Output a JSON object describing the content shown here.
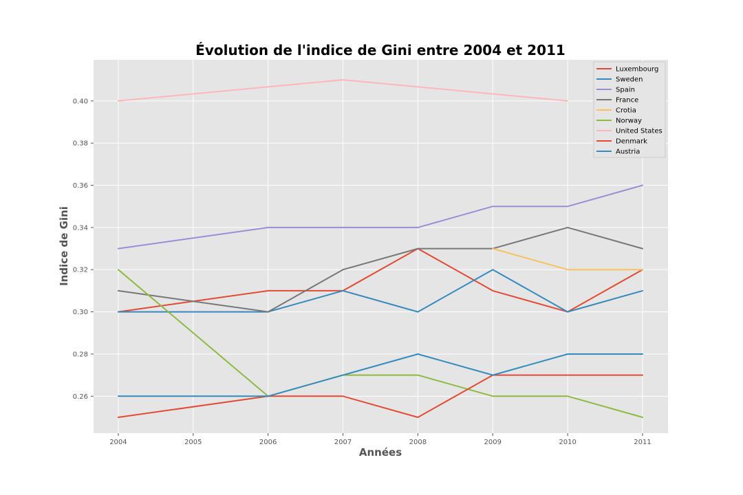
{
  "chart_data": {
    "type": "line",
    "title": "Évolution de l'indice de Gini entre 2004 et 2011",
    "xlabel": "Années",
    "ylabel": "Indice de Gini",
    "x": [
      2004,
      2005,
      2006,
      2007,
      2008,
      2009,
      2010,
      2011
    ],
    "xlim": [
      2003.67,
      2011.34
    ],
    "ylim": [
      0.2425,
      0.4195
    ],
    "x_ticks": [
      2004,
      2005,
      2006,
      2007,
      2008,
      2009,
      2010,
      2011
    ],
    "y_ticks": [
      0.26,
      0.28,
      0.3,
      0.32,
      0.34,
      0.36,
      0.38,
      0.4
    ],
    "y_tick_labels": [
      "0.26",
      "0.28",
      "0.30",
      "0.32",
      "0.34",
      "0.36",
      "0.38",
      "0.40"
    ],
    "grid": true,
    "legend_position": "top-right",
    "style": "ggplot",
    "series": [
      {
        "name": "Luxembourg",
        "color": "#E24A33",
        "points": [
          [
            2004,
            0.3
          ],
          [
            2006,
            0.31
          ],
          [
            2007,
            0.31
          ],
          [
            2008,
            0.33
          ],
          [
            2009,
            0.31
          ],
          [
            2010,
            0.3
          ],
          [
            2011,
            0.32
          ]
        ]
      },
      {
        "name": "Sweden",
        "color": "#348ABD",
        "points": [
          [
            2004,
            0.3
          ],
          [
            2006,
            0.3
          ],
          [
            2007,
            0.31
          ],
          [
            2008,
            0.3
          ],
          [
            2009,
            0.32
          ],
          [
            2010,
            0.3
          ],
          [
            2011,
            0.31
          ]
        ]
      },
      {
        "name": "Spain",
        "color": "#988ED5",
        "points": [
          [
            2004,
            0.33
          ],
          [
            2006,
            0.34
          ],
          [
            2007,
            0.34
          ],
          [
            2008,
            0.34
          ],
          [
            2009,
            0.35
          ],
          [
            2010,
            0.35
          ],
          [
            2011,
            0.36
          ]
        ]
      },
      {
        "name": "France",
        "color": "#777777",
        "points": [
          [
            2004,
            0.31
          ],
          [
            2006,
            0.3
          ],
          [
            2007,
            0.32
          ],
          [
            2008,
            0.33
          ],
          [
            2009,
            0.33
          ],
          [
            2010,
            0.34
          ],
          [
            2011,
            0.33
          ]
        ]
      },
      {
        "name": "Crotia",
        "color": "#FBC15E",
        "points": [
          [
            2009,
            0.33
          ],
          [
            2010,
            0.32
          ],
          [
            2011,
            0.32
          ]
        ]
      },
      {
        "name": "Norway",
        "color": "#8EBA42",
        "points": [
          [
            2004,
            0.32
          ],
          [
            2006,
            0.26
          ],
          [
            2007,
            0.27
          ],
          [
            2008,
            0.27
          ],
          [
            2009,
            0.26
          ],
          [
            2010,
            0.26
          ],
          [
            2011,
            0.25
          ]
        ]
      },
      {
        "name": "United States",
        "color": "#FFB5B8",
        "points": [
          [
            2004,
            0.4
          ],
          [
            2007,
            0.41
          ],
          [
            2010,
            0.4
          ]
        ]
      },
      {
        "name": "Denmark",
        "color": "#E24A33",
        "points": [
          [
            2004,
            0.25
          ],
          [
            2006,
            0.26
          ],
          [
            2007,
            0.26
          ],
          [
            2008,
            0.25
          ],
          [
            2009,
            0.27
          ],
          [
            2010,
            0.27
          ],
          [
            2011,
            0.27
          ]
        ]
      },
      {
        "name": "Austria",
        "color": "#348ABD",
        "points": [
          [
            2004,
            0.26
          ],
          [
            2006,
            0.26
          ],
          [
            2007,
            0.27
          ],
          [
            2008,
            0.28
          ],
          [
            2009,
            0.27
          ],
          [
            2010,
            0.28
          ],
          [
            2011,
            0.28
          ]
        ]
      }
    ]
  }
}
